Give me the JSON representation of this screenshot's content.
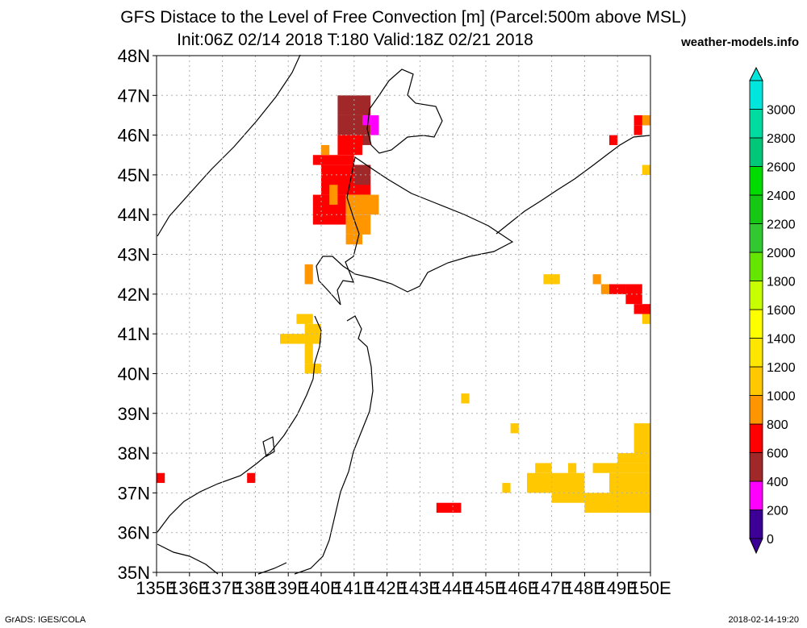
{
  "header": {
    "title_line1": "GFS Distace to the Level of Free Convection [m] (Parcel:500m above MSL)",
    "title_line2": "Init:06Z 02/14 2018 T:180 Valid:18Z 02/21 2018",
    "brand": "weather-models.info"
  },
  "footer": {
    "credit": "GrADS: IGES/COLA",
    "timestamp": "2018-02-14-19:20"
  },
  "map": {
    "lon_range": [
      135,
      150
    ],
    "lat_range": [
      35,
      48
    ],
    "lat_labels": [
      "35N",
      "36N",
      "37N",
      "38N",
      "39N",
      "40N",
      "41N",
      "42N",
      "43N",
      "44N",
      "45N",
      "46N",
      "47N",
      "48N"
    ],
    "lon_labels": [
      "135E",
      "136E",
      "137E",
      "138E",
      "139E",
      "140E",
      "141E",
      "142E",
      "143E",
      "144E",
      "145E",
      "146E",
      "147E",
      "148E",
      "149E",
      "150E"
    ]
  },
  "colorbar": {
    "labels": [
      "0",
      "200",
      "400",
      "600",
      "800",
      "1000",
      "1200",
      "1400",
      "1600",
      "1800",
      "2000",
      "2200",
      "2400",
      "2600",
      "2800",
      "3000"
    ],
    "colors": [
      "#3c0096",
      "#ff00ff",
      "#a02828",
      "#ff0000",
      "#ff9600",
      "#ffc800",
      "#ffe600",
      "#ffff00",
      "#c8ff00",
      "#64e600",
      "#32c832",
      "#14c814",
      "#00dc00",
      "#00c878",
      "#00dca0",
      "#00e6dc"
    ],
    "under_color": "#3c0096",
    "over_color": "#00e6dc"
  },
  "data_cells": [
    {
      "lon": 140.5,
      "lat": 46.5,
      "w": 1.0,
      "h": 0.5,
      "level": "400"
    },
    {
      "lon": 140.5,
      "lat": 46.0,
      "w": 1.0,
      "h": 0.5,
      "level": "400"
    },
    {
      "lon": 141.25,
      "lat": 46.25,
      "w": 0.25,
      "h": 0.25,
      "level": "200"
    },
    {
      "lon": 141.5,
      "lat": 46.0,
      "w": 0.25,
      "h": 0.5,
      "level": "200"
    },
    {
      "lon": 141.25,
      "lat": 45.75,
      "w": 0.25,
      "h": 0.25,
      "level": "400"
    },
    {
      "lon": 140.5,
      "lat": 45.5,
      "w": 0.75,
      "h": 0.5,
      "level": "600"
    },
    {
      "lon": 139.75,
      "lat": 45.25,
      "w": 1.25,
      "h": 0.25,
      "level": "600"
    },
    {
      "lon": 140.0,
      "lat": 45.5,
      "w": 0.25,
      "h": 0.25,
      "level": "800"
    },
    {
      "lon": 140.0,
      "lat": 44.5,
      "w": 1.5,
      "h": 0.75,
      "level": "600"
    },
    {
      "lon": 141.0,
      "lat": 44.75,
      "w": 0.5,
      "h": 0.5,
      "level": "400"
    },
    {
      "lon": 139.75,
      "lat": 43.75,
      "w": 1.0,
      "h": 0.75,
      "level": "600"
    },
    {
      "lon": 140.75,
      "lat": 44.0,
      "w": 1.0,
      "h": 0.5,
      "level": "800"
    },
    {
      "lon": 140.25,
      "lat": 44.25,
      "w": 0.25,
      "h": 0.5,
      "level": "800"
    },
    {
      "lon": 140.75,
      "lat": 43.5,
      "w": 0.75,
      "h": 0.5,
      "level": "800"
    },
    {
      "lon": 140.75,
      "lat": 43.25,
      "w": 0.5,
      "h": 0.25,
      "level": "800"
    },
    {
      "lon": 139.5,
      "lat": 42.25,
      "w": 0.25,
      "h": 0.5,
      "level": "800"
    },
    {
      "lon": 139.25,
      "lat": 41.25,
      "w": 0.5,
      "h": 0.25,
      "level": "1000"
    },
    {
      "lon": 139.5,
      "lat": 40.75,
      "w": 0.5,
      "h": 0.5,
      "level": "1000"
    },
    {
      "lon": 138.75,
      "lat": 40.75,
      "w": 0.75,
      "h": 0.25,
      "level": "1000"
    },
    {
      "lon": 139.5,
      "lat": 40.25,
      "w": 0.25,
      "h": 0.5,
      "level": "1000"
    },
    {
      "lon": 139.5,
      "lat": 40.0,
      "w": 0.5,
      "h": 0.25,
      "level": "1000"
    },
    {
      "lon": 135.0,
      "lat": 37.25,
      "w": 0.25,
      "h": 0.25,
      "level": "600"
    },
    {
      "lon": 137.75,
      "lat": 37.25,
      "w": 0.25,
      "h": 0.25,
      "level": "600"
    },
    {
      "lon": 149.5,
      "lat": 46.25,
      "w": 0.5,
      "h": 0.25,
      "level": "600"
    },
    {
      "lon": 149.5,
      "lat": 46.0,
      "w": 0.25,
      "h": 0.25,
      "level": "600"
    },
    {
      "lon": 149.75,
      "lat": 46.25,
      "w": 0.25,
      "h": 0.25,
      "level": "800"
    },
    {
      "lon": 148.75,
      "lat": 45.75,
      "w": 0.25,
      "h": 0.25,
      "level": "600"
    },
    {
      "lon": 149.75,
      "lat": 45.0,
      "w": 0.25,
      "h": 0.25,
      "level": "1000"
    },
    {
      "lon": 146.75,
      "lat": 42.25,
      "w": 0.5,
      "h": 0.25,
      "level": "1000"
    },
    {
      "lon": 148.25,
      "lat": 42.25,
      "w": 0.25,
      "h": 0.25,
      "level": "800"
    },
    {
      "lon": 148.5,
      "lat": 42.0,
      "w": 1.0,
      "h": 0.25,
      "level": "800"
    },
    {
      "lon": 148.75,
      "lat": 42.0,
      "w": 0.5,
      "h": 0.25,
      "level": "600"
    },
    {
      "lon": 149.25,
      "lat": 41.75,
      "w": 0.5,
      "h": 0.5,
      "level": "600"
    },
    {
      "lon": 149.5,
      "lat": 41.5,
      "w": 0.5,
      "h": 0.25,
      "level": "600"
    },
    {
      "lon": 149.75,
      "lat": 41.25,
      "w": 0.25,
      "h": 0.25,
      "level": "1000"
    },
    {
      "lon": 144.25,
      "lat": 39.25,
      "w": 0.25,
      "h": 0.25,
      "level": "1000"
    },
    {
      "lon": 145.75,
      "lat": 38.5,
      "w": 0.25,
      "h": 0.25,
      "level": "1000"
    },
    {
      "lon": 149.5,
      "lat": 38.0,
      "w": 0.5,
      "h": 0.75,
      "level": "1000"
    },
    {
      "lon": 149.0,
      "lat": 37.75,
      "w": 1.0,
      "h": 0.25,
      "level": "1000"
    },
    {
      "lon": 146.5,
      "lat": 37.5,
      "w": 0.5,
      "h": 0.25,
      "level": "1000"
    },
    {
      "lon": 147.5,
      "lat": 37.5,
      "w": 0.25,
      "h": 0.25,
      "level": "1000"
    },
    {
      "lon": 148.25,
      "lat": 37.5,
      "w": 0.5,
      "h": 0.25,
      "level": "1000"
    },
    {
      "lon": 148.75,
      "lat": 37.5,
      "w": 1.25,
      "h": 0.25,
      "level": "1000"
    },
    {
      "lon": 146.25,
      "lat": 37.0,
      "w": 1.75,
      "h": 0.5,
      "level": "1000"
    },
    {
      "lon": 145.5,
      "lat": 37.0,
      "w": 0.25,
      "h": 0.25,
      "level": "1000"
    },
    {
      "lon": 147.0,
      "lat": 36.75,
      "w": 1.0,
      "h": 0.25,
      "level": "1000"
    },
    {
      "lon": 148.75,
      "lat": 37.0,
      "w": 1.25,
      "h": 0.5,
      "level": "1000"
    },
    {
      "lon": 148.0,
      "lat": 36.5,
      "w": 2.0,
      "h": 0.5,
      "level": "1000"
    },
    {
      "lon": 143.5,
      "lat": 36.5,
      "w": 0.75,
      "h": 0.25,
      "level": "600"
    }
  ]
}
